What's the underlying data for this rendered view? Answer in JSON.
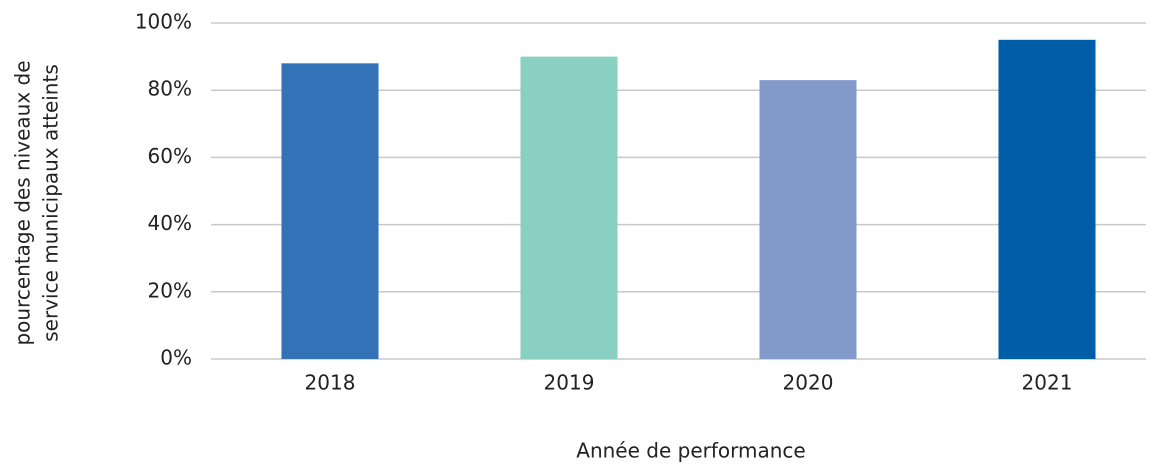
{
  "chart_data": {
    "type": "bar",
    "categories": [
      "2018",
      "2019",
      "2020",
      "2021"
    ],
    "values": [
      88,
      90,
      83,
      95
    ],
    "colors": [
      "#3372b6",
      "#8ad0c2",
      "#839bcb",
      "#005ea8"
    ],
    "ylim": [
      0,
      100
    ],
    "yticks": [
      {
        "value": 0,
        "label": "0%"
      },
      {
        "value": 20,
        "label": "20%"
      },
      {
        "value": 40,
        "label": "40%"
      },
      {
        "value": 60,
        "label": "60%"
      },
      {
        "value": 80,
        "label": "80%"
      },
      {
        "value": 100,
        "label": "100%"
      }
    ],
    "grid": true,
    "ylabel": [
      "pourcentage des niveaux de",
      "service municipaux atteints"
    ],
    "xlabel": "Année de performance"
  }
}
